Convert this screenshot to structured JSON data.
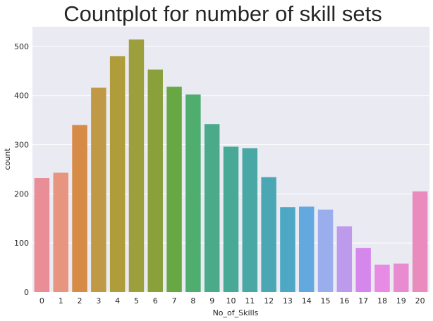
{
  "chart_data": {
    "type": "bar",
    "title": "Countplot for number of skill sets",
    "xlabel": "No_of_Skills",
    "ylabel": "count",
    "categories": [
      "0",
      "1",
      "2",
      "3",
      "4",
      "5",
      "6",
      "7",
      "8",
      "9",
      "10",
      "11",
      "12",
      "13",
      "14",
      "15",
      "16",
      "17",
      "18",
      "19",
      "20"
    ],
    "values": [
      232,
      243,
      340,
      416,
      480,
      514,
      453,
      418,
      402,
      342,
      296,
      293,
      234,
      173,
      174,
      168,
      134,
      90,
      56,
      58,
      205
    ],
    "ylim": [
      0,
      540
    ],
    "yticks": [
      0,
      100,
      200,
      300,
      400,
      500
    ],
    "grid": true,
    "colors": [
      "#e98d97",
      "#e8957f",
      "#d68b47",
      "#c09946",
      "#ae9d3a",
      "#9c9f3c",
      "#8aa03b",
      "#68a844",
      "#4ead6f",
      "#4aaa8a",
      "#48a996",
      "#49a8a4",
      "#4ba7b4",
      "#4ea7c4",
      "#64a8e0",
      "#9aadec",
      "#bd9aeb",
      "#d587ec",
      "#e78be4",
      "#e98bd1",
      "#e98cbd"
    ],
    "background": "#eaeaf2",
    "gridline_color": "#ffffff"
  }
}
